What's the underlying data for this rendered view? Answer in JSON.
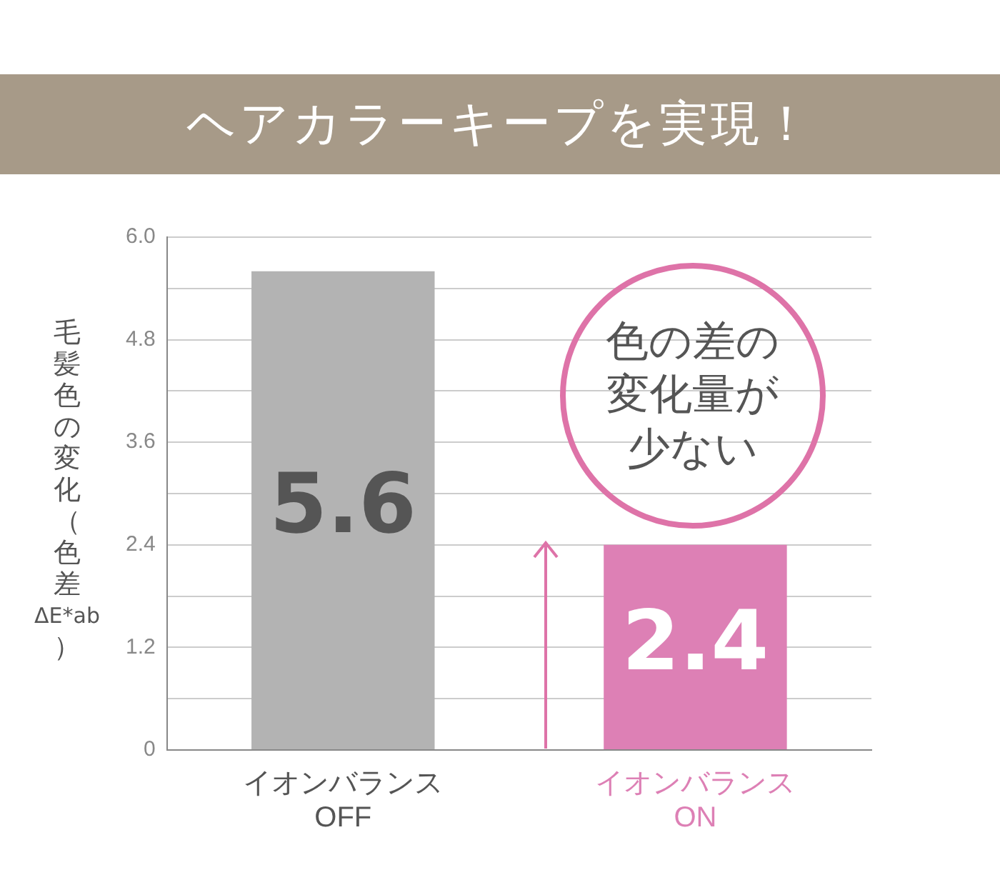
{
  "chart_data": {
    "type": "bar",
    "title": "ヘアカラーキープを実現！",
    "ylabel": "毛髪色の変化（色差ΔE*ab）",
    "categories": [
      "イオンバランス OFF",
      "イオンバランス ON"
    ],
    "values": [
      5.6,
      2.4
    ],
    "colors": [
      "#b3b3b3",
      "#dd80b5"
    ],
    "ylim": [
      0,
      6
    ],
    "yticks": [
      {
        "value": 0,
        "label": "0"
      },
      {
        "value": 0.6,
        "label": null
      },
      {
        "value": 1.2,
        "label": "1.2"
      },
      {
        "value": 1.8,
        "label": null
      },
      {
        "value": 2.4,
        "label": "2.4"
      },
      {
        "value": 3,
        "label": null
      },
      {
        "value": 3.6,
        "label": "3.6"
      },
      {
        "value": 4.2,
        "label": null
      },
      {
        "value": 4.8,
        "label": "4.8"
      },
      {
        "value": 5.4,
        "label": null
      },
      {
        "value": 6,
        "label": "6.0"
      }
    ],
    "grid": "y",
    "data_labels": true,
    "annotations": [
      "色の差の変化量が少ない"
    ]
  }
}
